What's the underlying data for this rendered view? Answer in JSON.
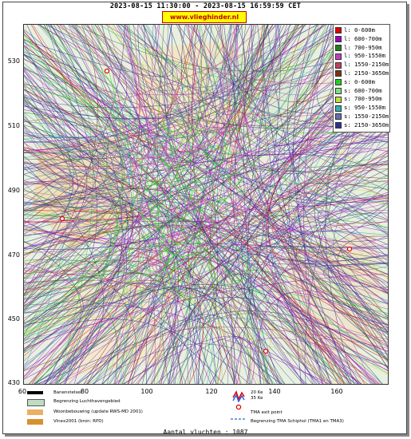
{
  "header": {
    "title": "2023-08-15 11:30:00 - 2023-08-15 16:59:59 CET",
    "site_badge": "www.vlieghinder.nl"
  },
  "axes": {
    "y_ticks": [
      "530",
      "510",
      "490",
      "470",
      "450",
      "430"
    ],
    "x_ticks": [
      "60",
      "80",
      "100",
      "120",
      "140",
      "160"
    ]
  },
  "legend": {
    "items": [
      {
        "label": "l: 0-600m",
        "color": "#e00000"
      },
      {
        "label": "l: 600-700m",
        "color": "#a000c0"
      },
      {
        "label": "l: 700-950m",
        "color": "#208020"
      },
      {
        "label": "l: 950-1550m",
        "color": "#c040c0"
      },
      {
        "label": "l: 1550-2150m",
        "color": "#c04060"
      },
      {
        "label": "l: 2150-3650m",
        "color": "#803010"
      },
      {
        "label": "s: 0-600m",
        "color": "#20d020"
      },
      {
        "label": "s: 600-700m",
        "color": "#80e080"
      },
      {
        "label": "s: 700-950m",
        "color": "#c0e040"
      },
      {
        "label": "s: 950-1550m",
        "color": "#30b0b0"
      },
      {
        "label": "s: 1550-2150m",
        "color": "#6070b0"
      },
      {
        "label": "s: 2150-3650m",
        "color": "#303090"
      }
    ]
  },
  "key": {
    "runways": "Banenstelsel",
    "airport_limit": "Begrenzing Luchthavengebied",
    "housing": "Woonbebouwing (update RWS-MD 2001)",
    "vinex": "Vinex2001 (bron: RPD)",
    "noise_20": "20 Ke",
    "noise_35": "35 Ke",
    "tma_exit": "TMA exit point",
    "tma_limit": "Begrenzing TMA Schiphol  (TMA1 en TMA3)"
  },
  "footer": {
    "count": "Aantal vluchten : 1087"
  },
  "colors": {
    "red": "#e00000",
    "orange_housing": "#e8b060",
    "vinex": "#d89030",
    "airport_area": "#c0dcc0",
    "tma_line": "#3060e0"
  }
}
